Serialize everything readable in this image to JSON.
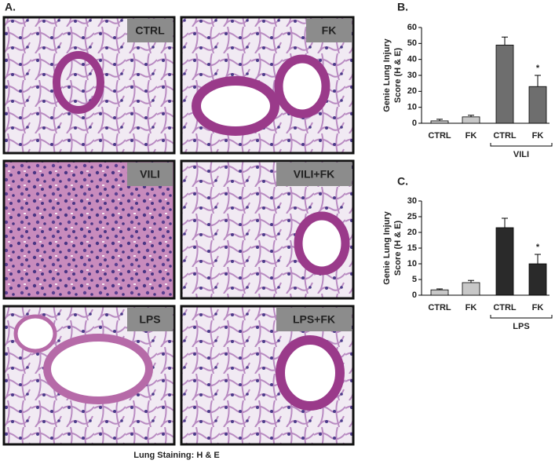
{
  "panel_a": {
    "label": "A.",
    "images": [
      {
        "label": "CTRL"
      },
      {
        "label": "FK"
      },
      {
        "label": "VILI"
      },
      {
        "label": "VILI+FK"
      },
      {
        "label": "LPS"
      },
      {
        "label": "LPS+FK"
      }
    ],
    "caption": "Lung Staining:  H & E"
  },
  "chart_data": [
    {
      "type": "bar",
      "panel_label": "B.",
      "ylabel": [
        "Genie Lung Injury",
        "Score (H & E)"
      ],
      "categories": [
        "CTRL",
        "FK",
        "CTRL",
        "FK"
      ],
      "values": [
        1.5,
        4,
        49,
        23
      ],
      "errors": [
        1,
        1,
        5,
        7
      ],
      "colors": [
        "#c8c8c8",
        "#c8c8c8",
        "#6e6e6e",
        "#6e6e6e"
      ],
      "ylim": [
        0,
        60
      ],
      "yticks": [
        0,
        10,
        20,
        30,
        40,
        50,
        60
      ],
      "group_label": "VILI",
      "annotation": "*"
    },
    {
      "type": "bar",
      "panel_label": "C.",
      "ylabel": [
        "Genie Lung Injury",
        "Score (H & E)"
      ],
      "categories": [
        "CTRL",
        "FK",
        "CTRL",
        "FK"
      ],
      "values": [
        1.7,
        4,
        21.5,
        10
      ],
      "errors": [
        0.3,
        0.7,
        3,
        3
      ],
      "colors": [
        "#c8c8c8",
        "#c8c8c8",
        "#2a2a2a",
        "#2a2a2a"
      ],
      "ylim": [
        0,
        30
      ],
      "yticks": [
        0,
        5,
        10,
        15,
        20,
        25,
        30
      ],
      "group_label": "LPS",
      "annotation": "*"
    }
  ]
}
